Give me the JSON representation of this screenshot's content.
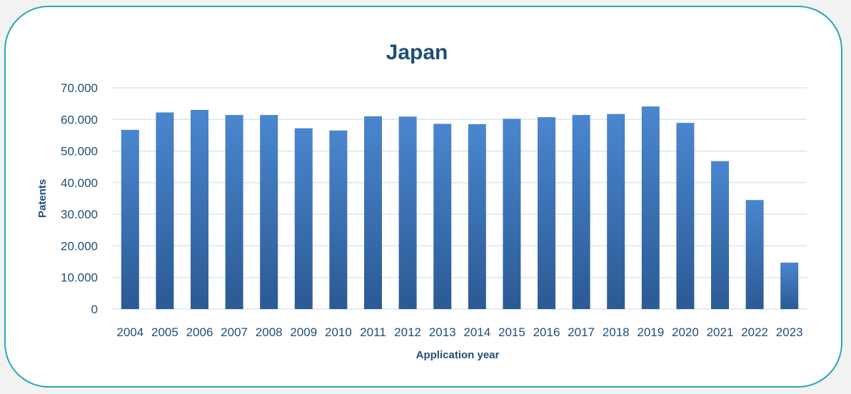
{
  "chart_data": {
    "type": "bar",
    "title": "Japan",
    "xlabel": "Application year",
    "ylabel": "Patents",
    "ylim": [
      0,
      70000
    ],
    "yticks": [
      0,
      10000,
      20000,
      30000,
      40000,
      50000,
      60000,
      70000
    ],
    "ytick_labels": [
      "0",
      "10.000",
      "20.000",
      "30.000",
      "40.000",
      "50.000",
      "60.000",
      "70.000"
    ],
    "categories": [
      "2004",
      "2005",
      "2006",
      "2007",
      "2008",
      "2009",
      "2010",
      "2011",
      "2012",
      "2013",
      "2014",
      "2015",
      "2016",
      "2017",
      "2018",
      "2019",
      "2020",
      "2021",
      "2022",
      "2023"
    ],
    "values": [
      56700,
      62200,
      63000,
      61400,
      61400,
      57200,
      56500,
      61000,
      60900,
      58600,
      58500,
      60200,
      60700,
      61400,
      61700,
      64100,
      58900,
      46800,
      34500,
      14700
    ],
    "grid": true,
    "legend": "none",
    "colors": {
      "bar_top": "#4a86cf",
      "bar_bottom": "#2b5a94",
      "grid": "#d9e6f2",
      "text": "#1f4e79",
      "border": "#2aa6b5"
    }
  }
}
